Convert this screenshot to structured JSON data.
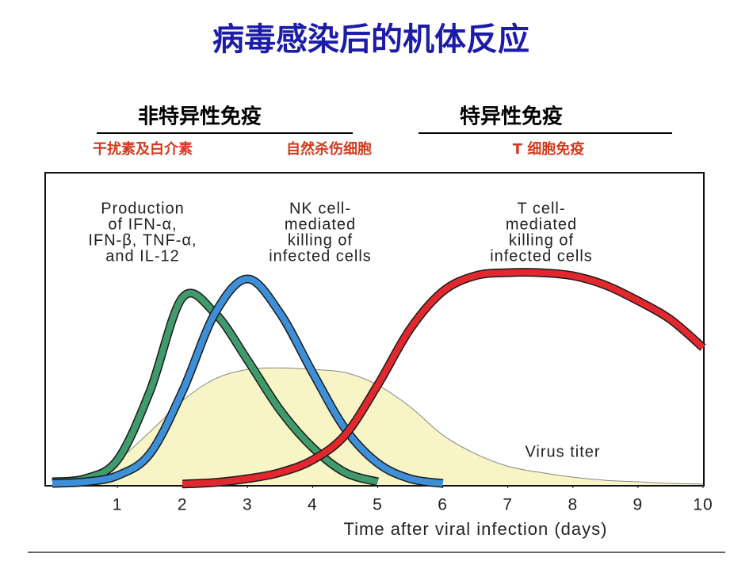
{
  "title": "病毒感染后的机体反应",
  "headings": [
    "非特异性免疫",
    "特异性免疫"
  ],
  "subheadings": [
    "干扰素及白介素",
    "自然杀伤细胞",
    "T 细胞免疫"
  ],
  "chart_data": {
    "type": "line",
    "x": [
      0,
      0.5,
      1,
      1.5,
      2,
      2.5,
      3,
      3.5,
      4,
      4.5,
      5,
      5.5,
      6,
      6.5,
      7,
      7.5,
      8,
      8.5,
      9,
      9.5,
      10
    ],
    "xlim": [
      0,
      10
    ],
    "xticks": [
      1,
      2,
      3,
      4,
      5,
      6,
      7,
      8,
      9,
      10
    ],
    "ylim": [
      0,
      100
    ],
    "x_label": "Time after viral infection (days)",
    "series": [
      {
        "label": [
          "Virus titer"
        ],
        "color": "#f7f5c6",
        "fill": true,
        "values": [
          1,
          3,
          8,
          17,
          27,
          34,
          37,
          37.5,
          37,
          36,
          32,
          25,
          16,
          10,
          6,
          4,
          2.5,
          1.5,
          1,
          0.5,
          0.3
        ]
      },
      {
        "label": [
          "Production",
          "of IFN-α,",
          "IFN-β, TNF-α,",
          "and IL-12"
        ],
        "color": "#3f9a6c",
        "values": [
          1,
          2,
          8,
          30,
          60,
          55,
          40,
          24,
          12,
          4,
          1,
          null,
          null,
          null,
          null,
          null,
          null,
          null,
          null,
          null,
          null
        ]
      },
      {
        "label": [
          "NK cell-",
          "mediated",
          "killing of",
          "infected cells"
        ],
        "color": "#3d8fd8",
        "values": [
          0.5,
          1,
          3,
          10,
          30,
          55,
          66,
          55,
          36,
          18,
          7,
          2,
          0.5,
          null,
          null,
          null,
          null,
          null,
          null,
          null,
          null
        ]
      },
      {
        "label": [
          "T cell-",
          "mediated",
          "killing of",
          "infected cells"
        ],
        "color": "#e0282e",
        "values": [
          null,
          null,
          null,
          null,
          0.3,
          0.8,
          2,
          4,
          8,
          16,
          32,
          50,
          62,
          67,
          68,
          68,
          67,
          64,
          59,
          53,
          44
        ]
      }
    ]
  }
}
